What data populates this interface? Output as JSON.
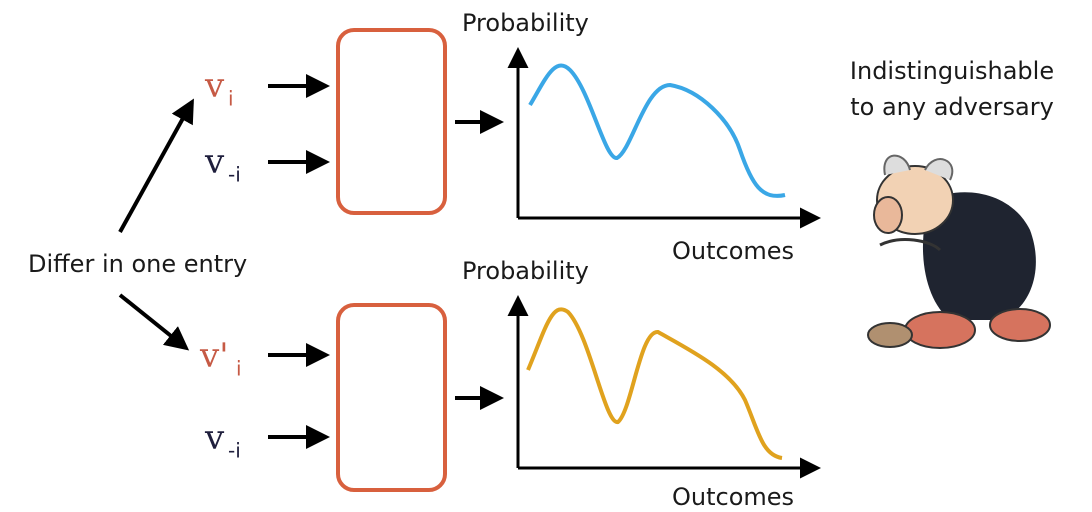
{
  "left_label": "Differ in one entry",
  "rows": [
    {
      "inputs": [
        {
          "symbol": "v",
          "subscript": "i"
        },
        {
          "symbol": "v",
          "subscript": "-i"
        }
      ],
      "y_axis": "Probability",
      "x_axis": "Outcomes"
    },
    {
      "inputs": [
        {
          "symbol": "v'",
          "subscript": "i"
        },
        {
          "symbol": "v",
          "subscript": "-i"
        }
      ],
      "y_axis": "Probability",
      "x_axis": "Outcomes"
    }
  ],
  "caption": {
    "lines": [
      "Indistinguishable",
      "to any adversary"
    ]
  }
}
